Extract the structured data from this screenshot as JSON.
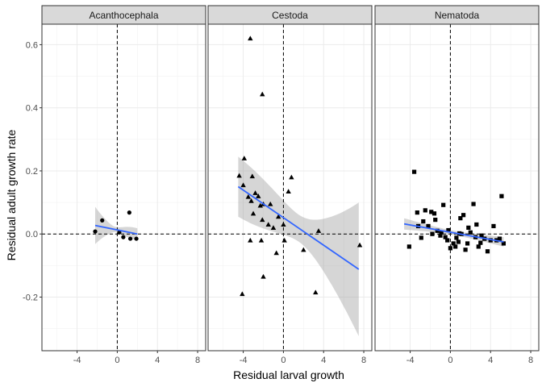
{
  "chart_data": {
    "type": "scatter",
    "xlabel": "Residual larval growth",
    "ylabel": "Residual adult growth rate",
    "xlim": [
      -7.5,
      8.8
    ],
    "ylim": [
      -0.37,
      0.665
    ],
    "x_ticks": [
      -4,
      0,
      4,
      8
    ],
    "x_tick_labels": [
      "-4",
      "0",
      "4",
      "8"
    ],
    "y_ticks": [
      -0.2,
      0.0,
      0.2,
      0.4,
      0.6
    ],
    "y_tick_labels": [
      "-0.2",
      "0.0",
      "0.2",
      "0.4",
      "0.6"
    ],
    "grid": true,
    "reference_lines": {
      "x": 0,
      "y": 0,
      "style": "dashed"
    },
    "smooth": {
      "method": "linear",
      "color": "#3366FF",
      "band_color": "#999999"
    },
    "panels": [
      {
        "title": "Acanthocephala",
        "marker": "circle",
        "points": [
          [
            -2.2,
            0.008
          ],
          [
            -1.5,
            0.043
          ],
          [
            0.2,
            0.005
          ],
          [
            0.6,
            -0.01
          ],
          [
            1.2,
            0.068
          ],
          [
            1.3,
            -0.015
          ],
          [
            1.9,
            -0.015
          ]
        ],
        "fit": {
          "x": [
            -2.2,
            2.0
          ],
          "y": [
            0.027,
            0.0
          ],
          "ci_low": [
            -0.032,
            -0.018
          ],
          "ci_high": [
            0.086,
            0.018
          ]
        }
      },
      {
        "title": "Cestoda",
        "marker": "triangle",
        "points": [
          [
            -3.3,
            0.62
          ],
          [
            -2.1,
            0.443
          ],
          [
            -4.4,
            0.185
          ],
          [
            -3.9,
            0.24
          ],
          [
            -3.1,
            0.183
          ],
          [
            -4.0,
            0.155
          ],
          [
            -3.5,
            0.118
          ],
          [
            -3.2,
            0.105
          ],
          [
            -2.8,
            0.13
          ],
          [
            -2.5,
            0.12
          ],
          [
            -2.3,
            0.09
          ],
          [
            -2.0,
            0.095
          ],
          [
            -3.0,
            0.065
          ],
          [
            -2.1,
            0.045
          ],
          [
            -1.3,
            0.095
          ],
          [
            -0.5,
            0.055
          ],
          [
            0.0,
            0.03
          ],
          [
            0.5,
            0.135
          ],
          [
            0.8,
            0.18
          ],
          [
            -1.5,
            0.03
          ],
          [
            -3.3,
            -0.02
          ],
          [
            -2.2,
            -0.02
          ],
          [
            -0.7,
            -0.06
          ],
          [
            0.1,
            -0.02
          ],
          [
            -2.0,
            -0.135
          ],
          [
            -4.1,
            -0.19
          ],
          [
            2.0,
            -0.05
          ],
          [
            3.2,
            -0.185
          ],
          [
            3.5,
            0.01
          ],
          [
            7.6,
            -0.035
          ],
          [
            -1.0,
            0.02
          ]
        ],
        "fit": {
          "x": [
            -4.5,
            7.5
          ],
          "y": [
            0.15,
            -0.112
          ],
          "ci_low": [
            0.06,
            -0.323
          ],
          "ci_high": [
            0.245,
            0.1
          ]
        }
      },
      {
        "title": "Nematoda",
        "marker": "square",
        "points": [
          [
            -4.1,
            -0.04
          ],
          [
            -3.6,
            0.197
          ],
          [
            -3.3,
            0.068
          ],
          [
            -3.2,
            0.025
          ],
          [
            -2.9,
            -0.012
          ],
          [
            -2.5,
            0.075
          ],
          [
            -2.2,
            0.025
          ],
          [
            -1.9,
            0.07
          ],
          [
            -1.6,
            0.065
          ],
          [
            -1.5,
            0.045
          ],
          [
            -1.3,
            0.01
          ],
          [
            -1.0,
            -0.005
          ],
          [
            -0.7,
            0.092
          ],
          [
            -0.5,
            -0.01
          ],
          [
            -0.3,
            -0.02
          ],
          [
            0.0,
            -0.045
          ],
          [
            0.3,
            -0.03
          ],
          [
            0.5,
            -0.04
          ],
          [
            0.8,
            -0.025
          ],
          [
            1.0,
            0.05
          ],
          [
            1.3,
            0.06
          ],
          [
            1.5,
            -0.05
          ],
          [
            1.7,
            -0.03
          ],
          [
            2.0,
            0.005
          ],
          [
            2.3,
            0.095
          ],
          [
            2.6,
            0.03
          ],
          [
            2.8,
            -0.04
          ],
          [
            3.1,
            -0.005
          ],
          [
            3.4,
            -0.015
          ],
          [
            3.7,
            -0.055
          ],
          [
            4.0,
            -0.02
          ],
          [
            4.3,
            0.025
          ],
          [
            4.6,
            -0.02
          ],
          [
            4.9,
            -0.015
          ],
          [
            5.1,
            0.12
          ],
          [
            5.3,
            -0.03
          ],
          [
            -1.8,
            0.0
          ],
          [
            -0.9,
            0.005
          ],
          [
            0.6,
            -0.012
          ],
          [
            1.1,
            0.0
          ],
          [
            1.8,
            0.02
          ],
          [
            2.5,
            -0.01
          ],
          [
            3.0,
            -0.028
          ],
          [
            -2.7,
            0.04
          ],
          [
            -0.2,
            0.012
          ],
          [
            0.9,
            0.002
          ]
        ],
        "fit": {
          "x": [
            -4.6,
            5.3
          ],
          "y": [
            0.032,
            -0.025
          ],
          "ci_low": [
            0.015,
            -0.04
          ],
          "ci_high": [
            0.05,
            -0.01
          ]
        }
      }
    ]
  }
}
